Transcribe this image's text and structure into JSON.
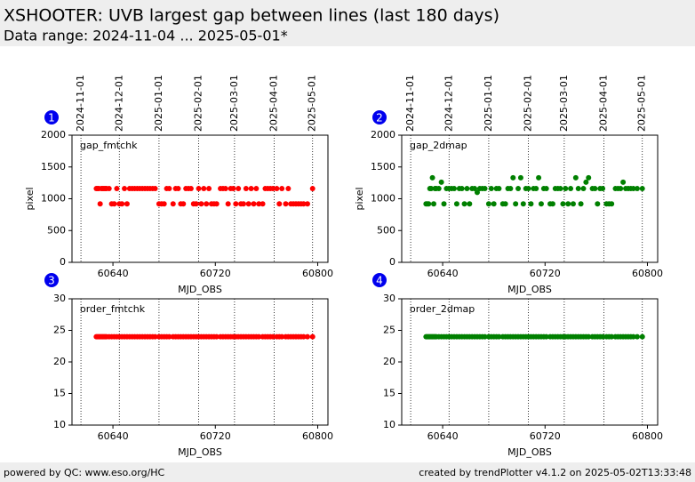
{
  "header": {
    "title": "XSHOOTER: UVB largest gap between lines (last 180 days)",
    "subtitle": "Data range: 2024-11-04 ... 2025-05-01*"
  },
  "footer": {
    "left": "powered by QC: www.eso.org/HC",
    "right": "created by trendPlotter v4.1.2 on 2025-05-02T13:33:48"
  },
  "chart_data": [
    {
      "type": "scatter",
      "panel": 1,
      "title": "gap_fmtchk",
      "xlabel": "MJD_OBS",
      "ylabel": "pixel",
      "color": "#ff0000",
      "xlim": [
        60608,
        60808
      ],
      "ylim": [
        0,
        2000
      ],
      "xticks": [
        60640,
        60720,
        60800
      ],
      "yticks": [
        0,
        500,
        1000,
        1500,
        2000
      ],
      "x2ticks": [
        {
          "value": 60615,
          "label": "2024-11-01"
        },
        {
          "value": 60645,
          "label": "2024-12-01"
        },
        {
          "value": 60676,
          "label": "2025-01-01"
        },
        {
          "value": 60707,
          "label": "2025-02-01"
        },
        {
          "value": 60735,
          "label": "2025-03-01"
        },
        {
          "value": 60766,
          "label": "2025-04-01"
        },
        {
          "value": 60796,
          "label": "2025-05-01"
        }
      ],
      "x": [
        60627,
        60628,
        60629,
        60630,
        60631,
        60632,
        60633,
        60634,
        60635,
        60637,
        60639,
        60641,
        60643,
        60645,
        60647,
        60649,
        60651,
        60653,
        60655,
        60657,
        60659,
        60661,
        60663,
        60665,
        60667,
        60669,
        60671,
        60673,
        60676,
        60678,
        60680,
        60682,
        60684,
        60687,
        60689,
        60691,
        60693,
        60695,
        60697,
        60699,
        60701,
        60703,
        60705,
        60707,
        60709,
        60711,
        60713,
        60715,
        60717,
        60719,
        60721,
        60724,
        60726,
        60728,
        60730,
        60732,
        60734,
        60736,
        60738,
        60740,
        60742,
        60744,
        60746,
        60748,
        60750,
        60752,
        60754,
        60757,
        60759,
        60761,
        60763,
        60765,
        60768,
        60770,
        60772,
        60775,
        60777,
        60779,
        60781,
        60783,
        60785,
        60787,
        60789,
        60792,
        60796
      ],
      "values": [
        1160,
        1160,
        1160,
        920,
        1160,
        1160,
        1160,
        1160,
        1160,
        1160,
        920,
        920,
        1160,
        920,
        920,
        1160,
        920,
        1160,
        1160,
        1160,
        1160,
        1160,
        1160,
        1160,
        1160,
        1160,
        1160,
        1160,
        920,
        920,
        920,
        1160,
        1160,
        920,
        1160,
        1160,
        920,
        920,
        1160,
        1160,
        1160,
        920,
        920,
        1160,
        920,
        1160,
        920,
        1160,
        920,
        920,
        920,
        1160,
        1160,
        1160,
        920,
        1160,
        1160,
        920,
        1160,
        920,
        920,
        1160,
        920,
        1160,
        920,
        1160,
        920,
        920,
        1160,
        1160,
        1160,
        1160,
        1160,
        920,
        1160,
        920,
        1160,
        920,
        920,
        920,
        920,
        920,
        920,
        920,
        1160
      ]
    },
    {
      "type": "scatter",
      "panel": 2,
      "title": "gap_2dmap",
      "xlabel": "MJD_OBS",
      "ylabel": "pixel",
      "color": "#008000",
      "xlim": [
        60608,
        60808
      ],
      "ylim": [
        0,
        2000
      ],
      "xticks": [
        60640,
        60720,
        60800
      ],
      "yticks": [
        0,
        500,
        1000,
        1500,
        2000
      ],
      "x2ticks": [
        {
          "value": 60615,
          "label": "2024-11-01"
        },
        {
          "value": 60645,
          "label": "2024-12-01"
        },
        {
          "value": 60676,
          "label": "2025-01-01"
        },
        {
          "value": 60707,
          "label": "2025-02-01"
        },
        {
          "value": 60735,
          "label": "2025-03-01"
        },
        {
          "value": 60766,
          "label": "2025-04-01"
        },
        {
          "value": 60796,
          "label": "2025-05-01"
        }
      ],
      "x": [
        60627,
        60628,
        60629,
        60630,
        60631,
        60632,
        60633,
        60634,
        60635,
        60637,
        60639,
        60641,
        60643,
        60645,
        60647,
        60649,
        60651,
        60653,
        60655,
        60657,
        60659,
        60661,
        60663,
        60665,
        60667,
        60669,
        60671,
        60673,
        60676,
        60678,
        60680,
        60682,
        60684,
        60687,
        60689,
        60691,
        60693,
        60695,
        60697,
        60699,
        60701,
        60703,
        60705,
        60707,
        60709,
        60711,
        60713,
        60715,
        60717,
        60719,
        60721,
        60724,
        60726,
        60728,
        60730,
        60732,
        60734,
        60736,
        60738,
        60740,
        60742,
        60744,
        60746,
        60748,
        60750,
        60752,
        60754,
        60757,
        60759,
        60761,
        60763,
        60765,
        60768,
        60770,
        60772,
        60775,
        60777,
        60779,
        60781,
        60783,
        60785,
        60787,
        60789,
        60792,
        60796
      ],
      "values": [
        920,
        920,
        920,
        1160,
        1160,
        1330,
        920,
        1160,
        1160,
        1160,
        1260,
        920,
        1160,
        1160,
        1160,
        1160,
        920,
        1160,
        1160,
        920,
        1160,
        920,
        1160,
        1160,
        1100,
        1160,
        1160,
        1160,
        920,
        1160,
        920,
        1160,
        1160,
        920,
        920,
        1160,
        1160,
        1330,
        920,
        1160,
        1330,
        920,
        1160,
        1160,
        920,
        1160,
        1160,
        1330,
        920,
        1160,
        1160,
        920,
        920,
        1160,
        1160,
        1160,
        920,
        1160,
        920,
        1160,
        920,
        1330,
        1160,
        920,
        1160,
        1260,
        1330,
        1160,
        1160,
        920,
        1160,
        1160,
        920,
        920,
        920,
        1160,
        1160,
        1160,
        1260,
        1160,
        1160,
        1160,
        1160,
        1160,
        1160
      ]
    },
    {
      "type": "scatter",
      "panel": 3,
      "title": "order_fmtchk",
      "xlabel": "MJD_OBS",
      "color": "#ff0000",
      "xlim": [
        60608,
        60808
      ],
      "ylim": [
        10,
        30
      ],
      "xticks": [
        60640,
        60720,
        60800
      ],
      "yticks": [
        10,
        15,
        20,
        25,
        30
      ],
      "x2ticks": [
        60615,
        60645,
        60676,
        60707,
        60735,
        60766,
        60796
      ],
      "x": [
        60627,
        60628,
        60629,
        60630,
        60631,
        60632,
        60633,
        60634,
        60635,
        60637,
        60639,
        60641,
        60643,
        60645,
        60647,
        60649,
        60651,
        60653,
        60655,
        60657,
        60659,
        60661,
        60663,
        60665,
        60667,
        60669,
        60671,
        60673,
        60676,
        60678,
        60680,
        60682,
        60684,
        60687,
        60689,
        60691,
        60693,
        60695,
        60697,
        60699,
        60701,
        60703,
        60705,
        60707,
        60709,
        60711,
        60713,
        60715,
        60717,
        60719,
        60721,
        60724,
        60726,
        60728,
        60730,
        60732,
        60734,
        60736,
        60738,
        60740,
        60742,
        60744,
        60746,
        60748,
        60750,
        60752,
        60754,
        60757,
        60759,
        60761,
        60763,
        60765,
        60768,
        60770,
        60772,
        60775,
        60777,
        60779,
        60781,
        60783,
        60785,
        60787,
        60789,
        60792,
        60796
      ],
      "values": [
        24,
        24,
        24,
        24,
        24,
        24,
        24,
        24,
        24,
        24,
        24,
        24,
        24,
        24,
        24,
        24,
        24,
        24,
        24,
        24,
        24,
        24,
        24,
        24,
        24,
        24,
        24,
        24,
        24,
        24,
        24,
        24,
        24,
        24,
        24,
        24,
        24,
        24,
        24,
        24,
        24,
        24,
        24,
        24,
        24,
        24,
        24,
        24,
        24,
        24,
        24,
        24,
        24,
        24,
        24,
        24,
        24,
        24,
        24,
        24,
        24,
        24,
        24,
        24,
        24,
        24,
        24,
        24,
        24,
        24,
        24,
        24,
        24,
        24,
        24,
        24,
        24,
        24,
        24,
        24,
        24,
        24,
        24,
        24,
        24
      ]
    },
    {
      "type": "scatter",
      "panel": 4,
      "title": "order_2dmap",
      "xlabel": "MJD_OBS",
      "color": "#008000",
      "xlim": [
        60608,
        60808
      ],
      "ylim": [
        10,
        30
      ],
      "xticks": [
        60640,
        60720,
        60800
      ],
      "yticks": [
        10,
        15,
        20,
        25,
        30
      ],
      "x2ticks": [
        60615,
        60645,
        60676,
        60707,
        60735,
        60766,
        60796
      ],
      "x": [
        60627,
        60628,
        60629,
        60630,
        60631,
        60632,
        60633,
        60634,
        60635,
        60637,
        60639,
        60641,
        60643,
        60645,
        60647,
        60649,
        60651,
        60653,
        60655,
        60657,
        60659,
        60661,
        60663,
        60665,
        60667,
        60669,
        60671,
        60673,
        60676,
        60678,
        60680,
        60682,
        60684,
        60687,
        60689,
        60691,
        60693,
        60695,
        60697,
        60699,
        60701,
        60703,
        60705,
        60707,
        60709,
        60711,
        60713,
        60715,
        60717,
        60719,
        60721,
        60724,
        60726,
        60728,
        60730,
        60732,
        60734,
        60736,
        60738,
        60740,
        60742,
        60744,
        60746,
        60748,
        60750,
        60752,
        60754,
        60757,
        60759,
        60761,
        60763,
        60765,
        60768,
        60770,
        60772,
        60775,
        60777,
        60779,
        60781,
        60783,
        60785,
        60787,
        60789,
        60792,
        60796
      ],
      "values": [
        24,
        24,
        24,
        24,
        24,
        24,
        24,
        24,
        24,
        24,
        24,
        24,
        24,
        24,
        24,
        24,
        24,
        24,
        24,
        24,
        24,
        24,
        24,
        24,
        24,
        24,
        24,
        24,
        24,
        24,
        24,
        24,
        24,
        24,
        24,
        24,
        24,
        24,
        24,
        24,
        24,
        24,
        24,
        24,
        24,
        24,
        24,
        24,
        24,
        24,
        24,
        24,
        24,
        24,
        24,
        24,
        24,
        24,
        24,
        24,
        24,
        24,
        24,
        24,
        24,
        24,
        24,
        24,
        24,
        24,
        24,
        24,
        24,
        24,
        24,
        24,
        24,
        24,
        24,
        24,
        24,
        24,
        24,
        24,
        24
      ]
    }
  ]
}
